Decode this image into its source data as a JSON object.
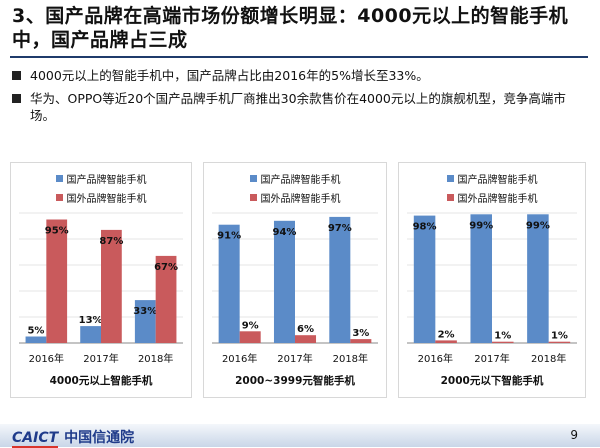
{
  "header": {
    "title": "3、国产品牌在高端市场份额增长明显：4000元以上的智能手机中，国产品牌占三成"
  },
  "bullets": [
    "4000元以上的智能手机中，国产品牌占比由2016年的5%增长至33%。",
    "华为、OPPO等近20个国产品牌手机厂商推出30余款售价在4000元以上的旗舰机型，竞争高端市场。"
  ],
  "colors": {
    "domestic": "#5b8bc8",
    "foreign": "#c95a5c"
  },
  "chart_data": [
    {
      "type": "bar",
      "title": "4000元以上智能手机",
      "categories": [
        "2016年",
        "2017年",
        "2018年"
      ],
      "series": [
        {
          "name": "国产品牌智能手机",
          "values": [
            5,
            13,
            33
          ]
        },
        {
          "name": "国外品牌智能手机",
          "values": [
            95,
            87,
            67
          ]
        }
      ],
      "ylim": [
        0,
        100
      ],
      "unit": "%",
      "legend": "top",
      "grid": true
    },
    {
      "type": "bar",
      "title": "2000~3999元智能手机",
      "categories": [
        "2016年",
        "2017年",
        "2018年"
      ],
      "series": [
        {
          "name": "国产品牌智能手机",
          "values": [
            91,
            94,
            97
          ]
        },
        {
          "name": "国外品牌智能手机",
          "values": [
            9,
            6,
            3
          ]
        }
      ],
      "ylim": [
        0,
        100
      ],
      "unit": "%",
      "legend": "top",
      "grid": true
    },
    {
      "type": "bar",
      "title": "2000元以下智能手机",
      "categories": [
        "2016年",
        "2017年",
        "2018年"
      ],
      "series": [
        {
          "name": "国产品牌智能手机",
          "values": [
            98,
            99,
            99
          ]
        },
        {
          "name": "国外品牌智能手机",
          "values": [
            2,
            1,
            1
          ]
        }
      ],
      "ylim": [
        0,
        100
      ],
      "unit": "%",
      "legend": "top",
      "grid": true
    }
  ],
  "footer": {
    "logo_en": "CAICT",
    "logo_cn": "中国信通院",
    "page": "9"
  }
}
